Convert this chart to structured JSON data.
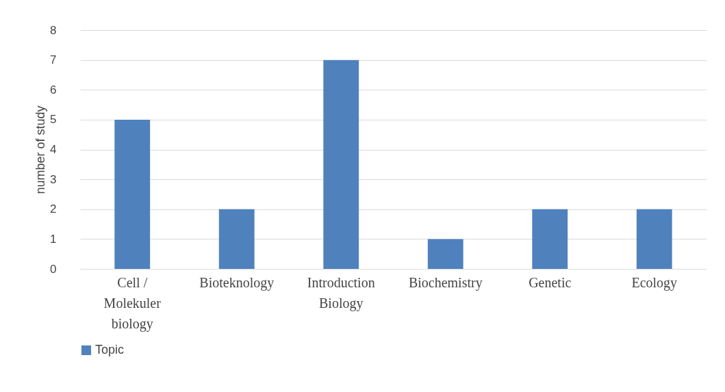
{
  "chart_data": {
    "type": "bar",
    "ylabel": "number of study",
    "categories": [
      "Cell / Molekuler biology",
      "Bioteknology",
      "Introduction Biology",
      "Biochemistry",
      "Genetic",
      "Ecology"
    ],
    "series": [
      {
        "name": "Topic",
        "color": "#4f81bd",
        "values": [
          5,
          2,
          7,
          1,
          2,
          2
        ]
      }
    ],
    "ylim": [
      0,
      8
    ],
    "yticks": [
      0,
      1,
      2,
      3,
      4,
      5,
      6,
      7,
      8
    ],
    "grid": "y",
    "legend": "bottom"
  }
}
